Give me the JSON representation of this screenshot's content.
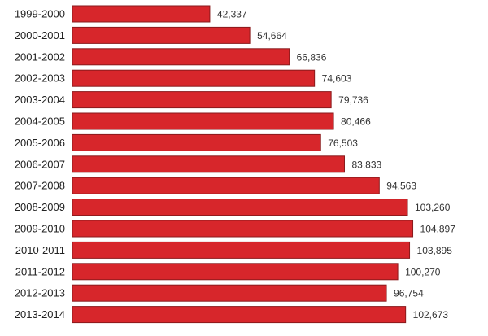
{
  "colors": {
    "bar_fill": "#d7262b",
    "bar_stroke": "#8a1a1c",
    "background": "#ffffff"
  },
  "chart_data": {
    "type": "bar",
    "orientation": "horizontal",
    "title": "",
    "xlabel": "",
    "ylabel": "",
    "grid": false,
    "xlim": [
      0,
      120000
    ],
    "categories": [
      "1999-2000",
      "2000-2001",
      "2001-2002",
      "2002-2003",
      "2003-2004",
      "2004-2005",
      "2005-2006",
      "2006-2007",
      "2007-2008",
      "2008-2009",
      "2009-2010",
      "2010-2011",
      "2011-2012",
      "2012-2013",
      "2013-2014"
    ],
    "values": [
      42337,
      54664,
      66836,
      74603,
      79736,
      80466,
      76503,
      83833,
      94563,
      103260,
      104897,
      103895,
      100270,
      96754,
      102673
    ],
    "value_labels": [
      "42,337",
      "54,664",
      "66,836",
      "74,603",
      "79,736",
      "80,466",
      "76,503",
      "83,833",
      "94,563",
      "103,260",
      "104,897",
      "103,895",
      "100,270",
      "96,754",
      "102,673"
    ]
  }
}
